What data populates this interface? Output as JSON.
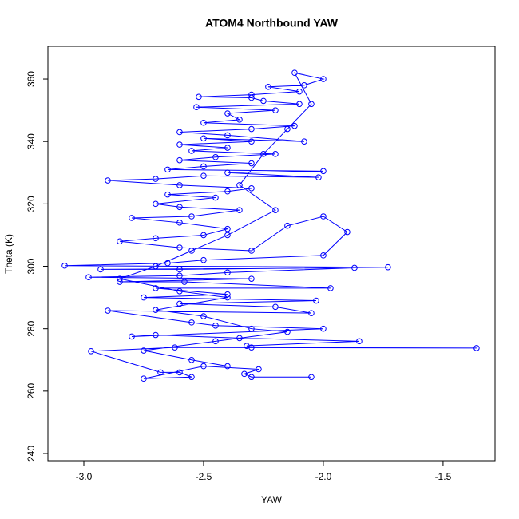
{
  "chart_data": {
    "type": "line",
    "title": "ATOM4 Northbound YAW",
    "x_label": "YAW",
    "y_label": "Theta (K)",
    "xlim": [
      -3.15,
      -1.283
    ],
    "ylim": [
      237.7,
      370.5
    ],
    "xticks": [
      {
        "value": -3.0,
        "label": "-3.0"
      },
      {
        "value": -2.5,
        "label": "-2.5"
      },
      {
        "value": -2.0,
        "label": "-2.0"
      },
      {
        "value": -1.5,
        "label": "-1.5"
      }
    ],
    "yticks": [
      240,
      260,
      280,
      300,
      320,
      340,
      360
    ],
    "grid": false,
    "x": [
      -2.05,
      -2.3,
      -2.33,
      -2.27,
      -2.5,
      -2.75,
      -2.55,
      -2.6,
      -2.68,
      -2.97,
      -2.62,
      -1.36,
      -2.3,
      -2.32,
      -1.85,
      -2.35,
      -2.7,
      -2.8,
      -2.0,
      -2.45,
      -2.55,
      -2.9,
      -2.05,
      -2.2,
      -2.6,
      -2.03,
      -2.75,
      -2.4,
      -2.7,
      -1.97,
      -2.58,
      -2.85,
      -2.3,
      -2.98,
      -2.6,
      -2.4,
      -1.87,
      -2.93,
      -2.6,
      -1.73,
      -3.08,
      -2.65,
      -2.5,
      -2.0,
      -1.9,
      -2.0,
      -2.15,
      -2.3,
      -2.6,
      -2.85,
      -2.7,
      -2.5,
      -2.4,
      -2.6,
      -2.8,
      -2.55,
      -2.35,
      -2.6,
      -2.7,
      -2.45,
      -2.65,
      -2.4,
      -2.3,
      -2.6,
      -2.9,
      -2.7,
      -2.5,
      -2.02,
      -2.4,
      -2.0,
      -2.65,
      -2.5,
      -2.3,
      -2.6,
      -2.45,
      -2.2,
      -2.55,
      -2.4,
      -2.6,
      -2.3,
      -2.5,
      -2.08,
      -2.4,
      -2.6,
      -2.3,
      -2.12,
      -2.5,
      -2.35,
      -2.4,
      -2.2,
      -2.53,
      -2.1,
      -2.25,
      -2.3,
      -2.52,
      -2.3,
      -2.1,
      -2.23,
      -2.08,
      -2.0,
      -2.12,
      -2.05,
      -2.15,
      -2.25,
      -2.35,
      -2.2,
      -2.4,
      -2.55,
      -2.7,
      -2.85,
      -2.6,
      -2.4,
      -2.7,
      -2.5,
      -2.3,
      -2.15,
      -2.45,
      -2.75,
      -2.55,
      -2.4
    ],
    "series": [
      {
        "name": "YAW",
        "color": "#0000ff",
        "values": [
          264.5,
          264.5,
          265.5,
          267,
          268,
          264,
          264.5,
          266,
          266,
          272.8,
          274,
          273.8,
          274,
          274.5,
          276,
          277,
          278,
          277.5,
          280,
          281,
          282,
          285.8,
          285,
          287,
          288,
          289,
          290,
          291,
          293,
          293,
          295,
          295,
          296,
          296.5,
          297,
          298,
          299.5,
          299,
          299,
          299.7,
          300.2,
          301,
          302,
          303.5,
          311,
          316,
          313,
          305,
          306,
          308,
          309,
          310,
          312,
          314,
          315.5,
          316,
          318,
          319,
          320,
          322,
          323,
          324,
          325,
          326,
          327.5,
          328,
          329,
          328.5,
          330,
          330.5,
          331,
          332,
          333,
          334,
          335,
          336,
          337,
          338,
          339,
          340,
          341,
          340,
          342,
          343,
          344,
          345,
          346,
          347,
          349,
          350,
          351,
          352,
          353,
          354,
          354.3,
          355,
          356,
          357.5,
          358,
          360,
          362,
          352,
          344,
          336,
          326,
          318,
          310,
          305,
          300,
          296,
          292,
          290,
          286,
          284,
          280,
          279,
          276,
          273,
          270,
          268
        ]
      }
    ]
  }
}
